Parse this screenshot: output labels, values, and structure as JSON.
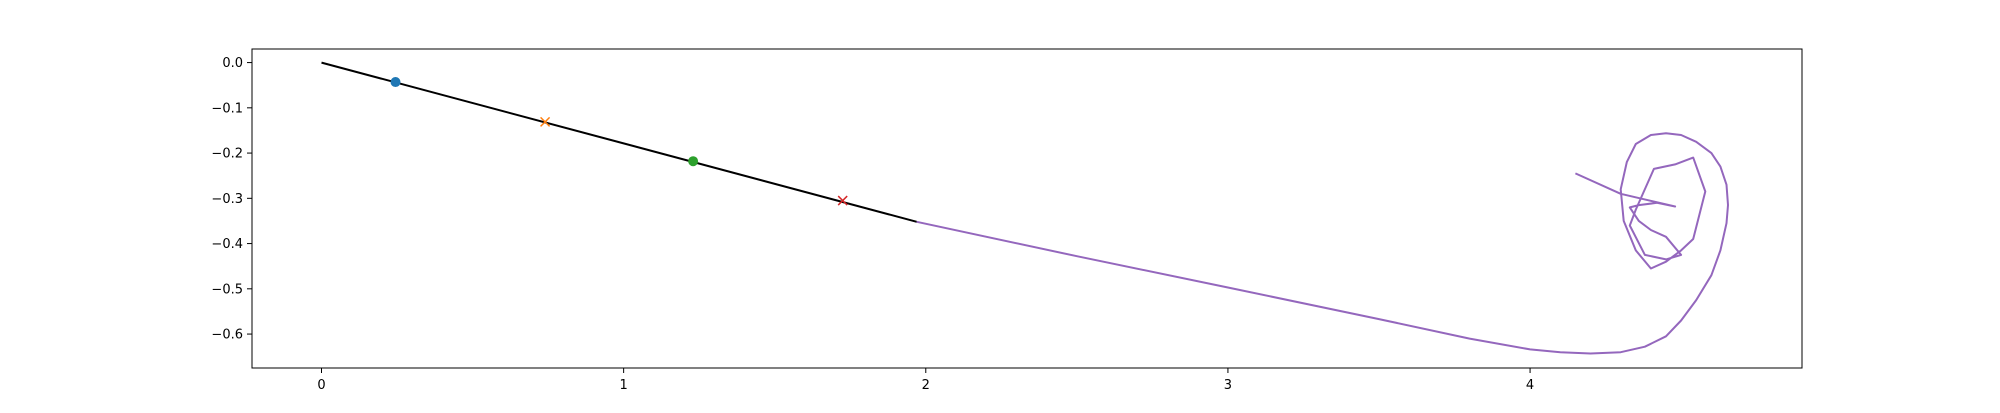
{
  "chart_data": {
    "type": "line",
    "title": "",
    "xlabel": "",
    "ylabel": "",
    "xlim": [
      -0.23,
      4.9
    ],
    "ylim": [
      -0.675,
      0.03
    ],
    "grid": false,
    "x_ticks": [
      {
        "value": 0,
        "label": "0"
      },
      {
        "value": 1,
        "label": "1"
      },
      {
        "value": 2,
        "label": "2"
      },
      {
        "value": 3,
        "label": "3"
      },
      {
        "value": 4,
        "label": "4"
      }
    ],
    "y_ticks": [
      {
        "value": 0.0,
        "label": "0.0"
      },
      {
        "value": -0.1,
        "label": "−0.1"
      },
      {
        "value": -0.2,
        "label": "−0.2"
      },
      {
        "value": -0.3,
        "label": "−0.3"
      },
      {
        "value": -0.4,
        "label": "−0.4"
      },
      {
        "value": -0.5,
        "label": "−0.5"
      },
      {
        "value": -0.6,
        "label": "−0.6"
      }
    ],
    "series": [
      {
        "kind": "line",
        "color": "#000000",
        "x": [
          0.0,
          1.97
        ],
        "y": [
          0.0,
          -0.352
        ]
      },
      {
        "kind": "line",
        "color": "#9467bd",
        "x": [
          1.97,
          2.5,
          3.0,
          3.5,
          3.8,
          4.0,
          4.1,
          4.2,
          4.3,
          4.38,
          4.45,
          4.5,
          4.55,
          4.6,
          4.63,
          4.65,
          4.655,
          4.65,
          4.63,
          4.6,
          4.55,
          4.5,
          4.45,
          4.4,
          4.35,
          4.32,
          4.3,
          4.31,
          4.35,
          4.4,
          4.45,
          4.5,
          4.54,
          4.58,
          4.54,
          4.48,
          4.41,
          4.35,
          4.33,
          4.38,
          4.45,
          4.5,
          4.45,
          4.4,
          4.36,
          4.33,
          4.36,
          4.42,
          4.48,
          4.3,
          4.15
        ],
        "y": [
          -0.352,
          -0.428,
          -0.497,
          -0.567,
          -0.61,
          -0.634,
          -0.64,
          -0.643,
          -0.64,
          -0.628,
          -0.605,
          -0.57,
          -0.525,
          -0.47,
          -0.415,
          -0.355,
          -0.315,
          -0.27,
          -0.23,
          -0.2,
          -0.175,
          -0.16,
          -0.156,
          -0.16,
          -0.18,
          -0.22,
          -0.28,
          -0.35,
          -0.415,
          -0.455,
          -0.44,
          -0.415,
          -0.39,
          -0.285,
          -0.21,
          -0.225,
          -0.235,
          -0.325,
          -0.36,
          -0.425,
          -0.435,
          -0.425,
          -0.385,
          -0.37,
          -0.35,
          -0.32,
          -0.315,
          -0.31,
          -0.318,
          -0.29,
          -0.245
        ]
      }
    ],
    "markers": [
      {
        "x": 0.245,
        "y": -0.043,
        "symbol": "o",
        "color": "#1f77b4"
      },
      {
        "x": 0.74,
        "y": -0.131,
        "symbol": "x",
        "color": "#ff7f0e"
      },
      {
        "x": 1.23,
        "y": -0.218,
        "symbol": "o",
        "color": "#2ca02c"
      },
      {
        "x": 1.725,
        "y": -0.305,
        "symbol": "x",
        "color": "#d62728"
      }
    ]
  }
}
